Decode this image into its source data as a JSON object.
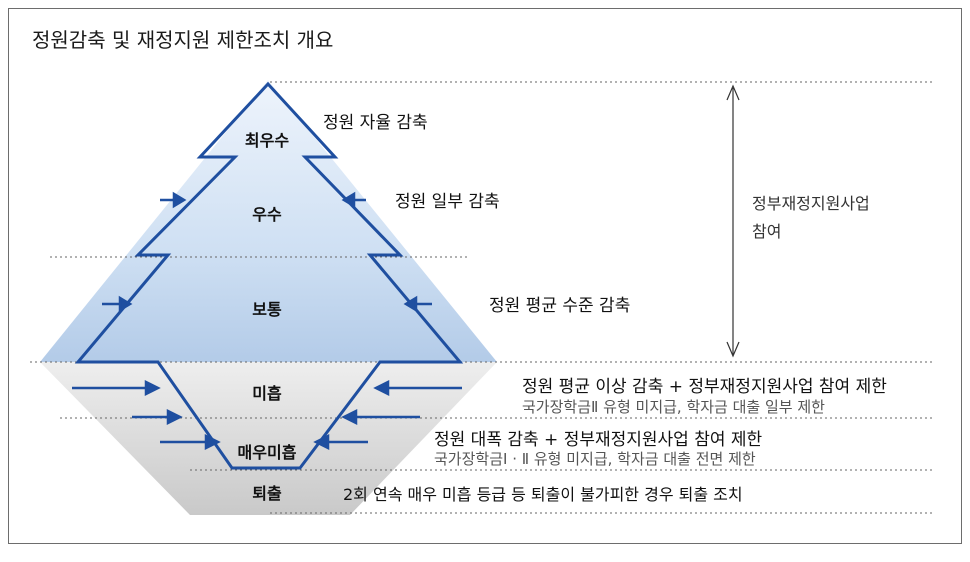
{
  "title": "정원감축 및 재정지원 제한조치 개요",
  "levels": [
    {
      "name": "최우수",
      "description": "정원 자율 감축",
      "detail": ""
    },
    {
      "name": "우수",
      "description": "정원 일부 감축",
      "detail": ""
    },
    {
      "name": "보통",
      "description": "정원 평균 수준 감축",
      "detail": ""
    },
    {
      "name": "미흡",
      "description": "정원 평균 이상 감축 + 정부재정지원사업 참여 제한",
      "detail": "국가장학금Ⅱ 유형 미지급, 학자금 대출 일부 제한"
    },
    {
      "name": "매우미흡",
      "description": "정원 대폭 감축 + 정부재정지원사업 참여 제한",
      "detail": "국가장학금Ⅰ · Ⅱ 유형 미지급, 학자금 대출 전면 제한"
    },
    {
      "name": "퇴출",
      "description": "2회 연속 매우 미흡 등급 등 퇴출이 불가피한 경우 퇴출 조치",
      "detail": ""
    }
  ],
  "side_label": {
    "line1": "정부재정지원사업",
    "line2": "참여"
  },
  "colors": {
    "line": "#1f4fa0",
    "fill_top": "#e7f0fb",
    "fill_bottom": "#b9d0ea",
    "grey_bottom": "#cfcfcf"
  }
}
